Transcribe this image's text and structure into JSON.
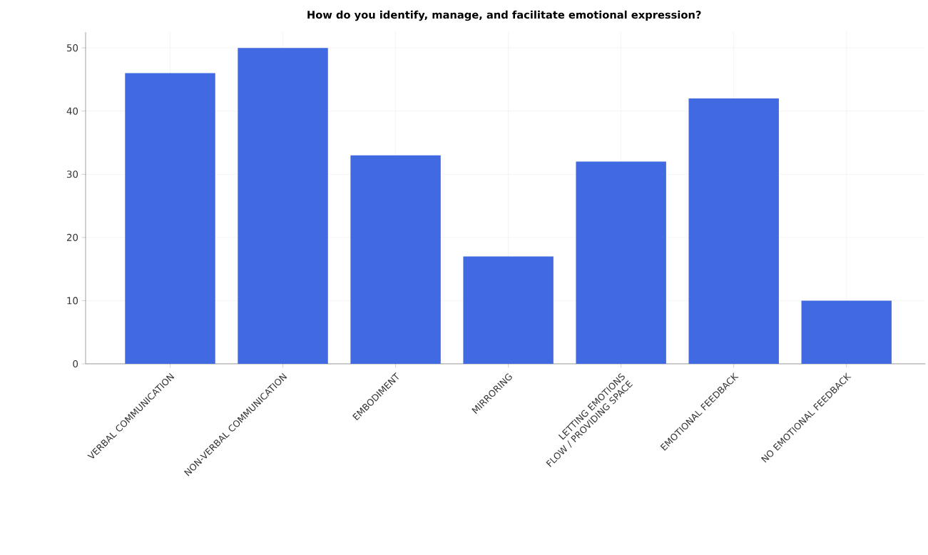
{
  "chart_data": {
    "type": "bar",
    "title": "How do you identify, manage, and facilitate emotional expression?",
    "categories": [
      "VERBAL COMMUNICATION",
      "NON-VERBAL COMMUNICATION",
      "EMBODIMENT",
      "MIRRORING",
      "LETTING EMOTIONS FLOW / PROVIDING SPACE",
      "EMOTIONAL FEEDBACK",
      "NO EMOTIONAL FEEDBACK"
    ],
    "values": [
      46,
      50,
      33,
      17,
      32,
      42,
      10
    ],
    "color": "#4169e1",
    "ylim": [
      0,
      52.5
    ],
    "yticks": [
      0,
      10,
      20,
      30,
      40,
      50
    ],
    "grid": true
  }
}
